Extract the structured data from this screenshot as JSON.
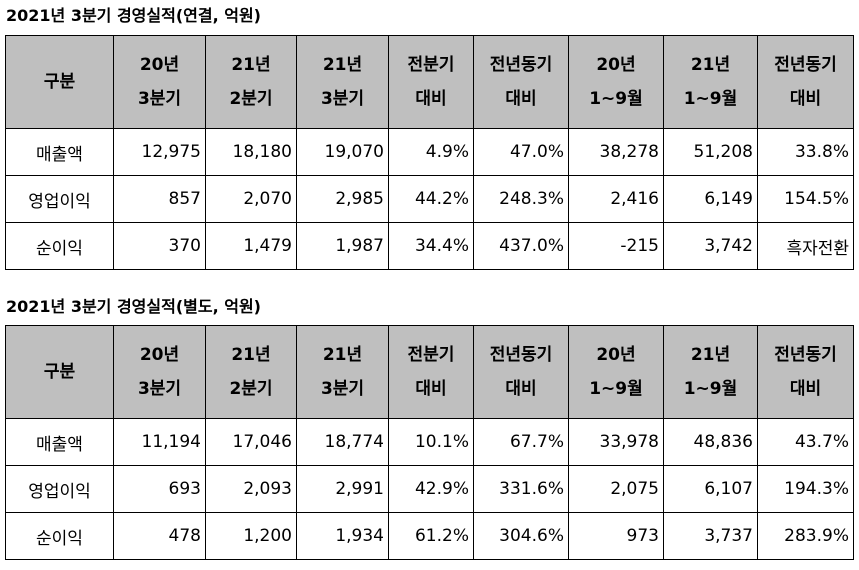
{
  "tables": [
    {
      "title": "2021년 3분기 경영실적(연결, 억원)",
      "header": [
        "구분",
        "20년\n3분기",
        "21년\n2분기",
        "21년\n3분기",
        "전분기\n대비",
        "전년동기\n대비",
        "20년\n1~9월",
        "21년\n1~9월",
        "전년동기\n대비"
      ],
      "rows": [
        [
          "매출액",
          "12,975",
          "18,180",
          "19,070",
          "4.9%",
          "47.0%",
          "38,278",
          "51,208",
          "33.8%"
        ],
        [
          "영업이익",
          "857",
          "2,070",
          "2,985",
          "44.2%",
          "248.3%",
          "2,416",
          "6,149",
          "154.5%"
        ],
        [
          "순이익",
          "370",
          "1,479",
          "1,987",
          "34.4%",
          "437.0%",
          "-215",
          "3,742",
          "흑자전환"
        ]
      ]
    },
    {
      "title": "2021년 3분기 경영실적(별도, 억원)",
      "header": [
        "구분",
        "20년\n3분기",
        "21년\n2분기",
        "21년\n3분기",
        "전분기\n대비",
        "전년동기\n대비",
        "20년\n1~9월",
        "21년\n1~9월",
        "전년동기\n대비"
      ],
      "rows": [
        [
          "매출액",
          "11,194",
          "17,046",
          "18,774",
          "10.1%",
          "67.7%",
          "33,978",
          "48,836",
          "43.7%"
        ],
        [
          "영업이익",
          "693",
          "2,093",
          "2,991",
          "42.9%",
          "331.6%",
          "2,075",
          "6,107",
          "194.3%"
        ],
        [
          "순이익",
          "478",
          "1,200",
          "1,934",
          "61.2%",
          "304.6%",
          "973",
          "3,737",
          "283.9%"
        ]
      ]
    }
  ]
}
